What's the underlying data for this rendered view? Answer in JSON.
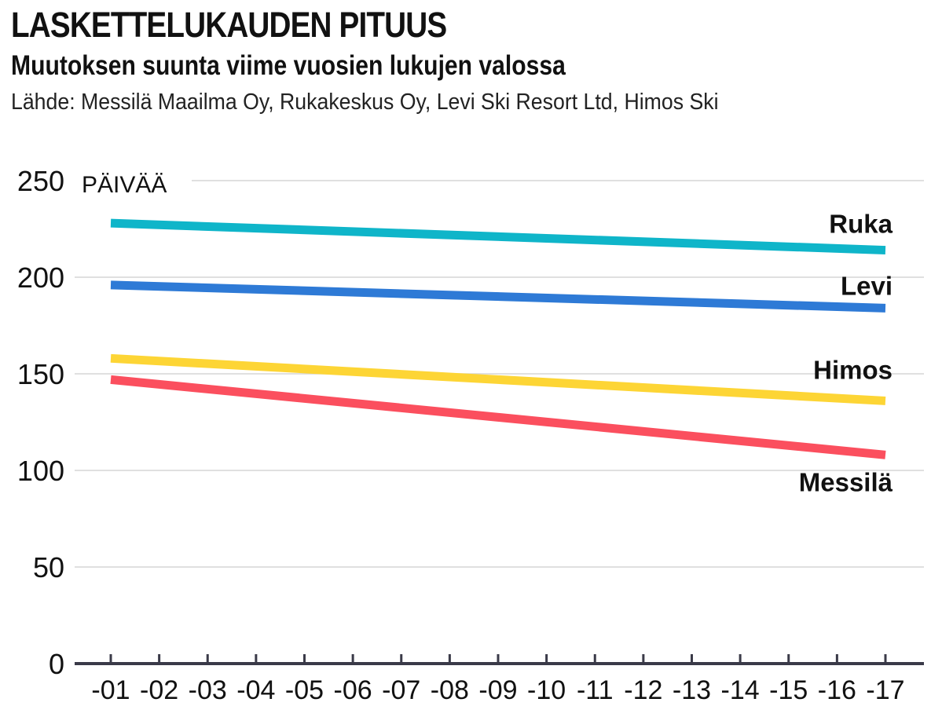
{
  "header": {
    "title": "LASKETTELUKAUDEN PITUUS",
    "subtitle": "Muutoksen suunta viime vuosien lukujen valossa",
    "source": "Lähde: Messilä Maailma Oy, Rukakeskus Oy, Levi Ski Resort Ltd, Himos Ski"
  },
  "chart_data": {
    "type": "line",
    "title": "LASKETTELUKAUDEN PITUUS",
    "subtitle": "Muutoksen suunta viime vuosien lukujen valossa",
    "ylabel": "PÄIVÄÄ",
    "xlabel": "",
    "categories": [
      "-01",
      "-02",
      "-03",
      "-04",
      "-05",
      "-06",
      "-07",
      "-08",
      "-09",
      "-10",
      "-11",
      "-12",
      "-13",
      "-14",
      "-15",
      "-16",
      "-17"
    ],
    "yticks": [
      0,
      50,
      100,
      150,
      200,
      250
    ],
    "ylim": [
      0,
      250
    ],
    "grid": true,
    "legend": "direct labels at right end of lines",
    "series": [
      {
        "name": "Ruka",
        "color": "#0fb5c9",
        "start": 228,
        "end": 214
      },
      {
        "name": "Levi",
        "color": "#2e7ad6",
        "start": 196,
        "end": 184
      },
      {
        "name": "Himos",
        "color": "#fdd535",
        "start": 158,
        "end": 136
      },
      {
        "name": "Messilä",
        "color": "#fb4f5e",
        "start": 147,
        "end": 108
      }
    ]
  }
}
